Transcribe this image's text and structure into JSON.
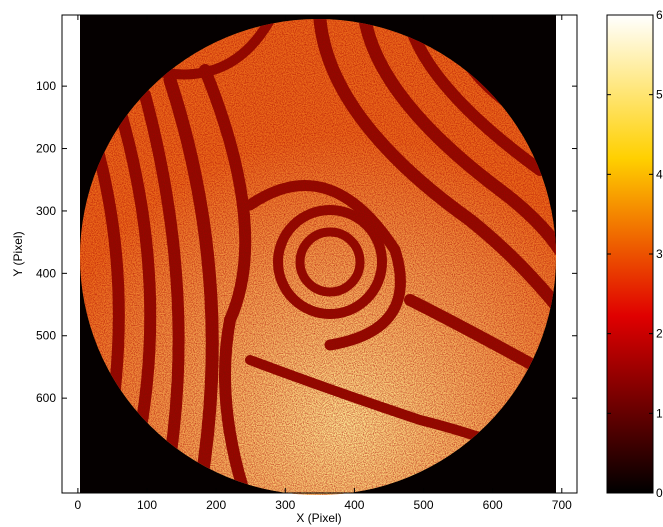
{
  "chart_data": {
    "type": "image",
    "colormap": "hot",
    "x_label": "X (Pixel)",
    "y_label": "Y (Pixel)",
    "xlim": [
      -23,
      722
    ],
    "xticks": [
      0,
      100,
      200,
      300,
      400,
      500,
      600,
      700
    ],
    "ylim": [
      752,
      -14
    ],
    "yticks": [
      100,
      200,
      300,
      400,
      500,
      600
    ],
    "colorbar": {
      "lim": [
        0,
        6
      ],
      "ticks": [
        0,
        1,
        2,
        3,
        4,
        5,
        6
      ]
    }
  }
}
